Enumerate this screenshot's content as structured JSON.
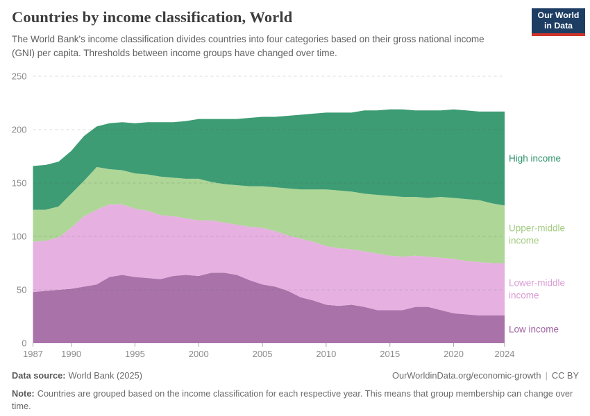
{
  "header": {
    "title": "Countries by income classification, World",
    "subtitle": "The World Bank's income classification divides countries into four categories based on their gross national income (GNI) per capita. Thresholds between income groups have changed over time."
  },
  "logo": {
    "line1": "Our World",
    "line2": "in Data",
    "bg_color": "#1d3d63",
    "stripe_color": "#cf342b"
  },
  "footer": {
    "data_source_label": "Data source:",
    "data_source_value": "World Bank (2025)",
    "link": "OurWorldinData.org/economic-growth",
    "divider": "|",
    "license": "CC BY",
    "note_label": "Note:",
    "note_text": "Countries are grouped based on the income classification for each respective year. This means that group membership can change over time."
  },
  "chart_data": {
    "type": "area",
    "stacked": true,
    "title": "Countries by income classification, World",
    "xlabel": "",
    "ylabel": "",
    "ylim": [
      0,
      250
    ],
    "yticks": [
      0,
      50,
      100,
      150,
      200,
      250
    ],
    "xticks": [
      1987,
      1990,
      1995,
      2000,
      2005,
      2010,
      2015,
      2020,
      2024
    ],
    "grid": "horizontal-dashed",
    "legend_position": "right",
    "x": [
      1987,
      1988,
      1989,
      1990,
      1991,
      1992,
      1993,
      1994,
      1995,
      1996,
      1997,
      1998,
      1999,
      2000,
      2001,
      2002,
      2003,
      2004,
      2005,
      2006,
      2007,
      2008,
      2009,
      2010,
      2011,
      2012,
      2013,
      2014,
      2015,
      2016,
      2017,
      2018,
      2019,
      2020,
      2021,
      2022,
      2023,
      2024
    ],
    "series": [
      {
        "id": "low-income",
        "name": "Low income",
        "legend_lines": [
          "Low income"
        ],
        "color": "#a973aa",
        "label_color": "#a163a3",
        "values": [
          48,
          49,
          50,
          51,
          53,
          55,
          62,
          64,
          62,
          61,
          60,
          63,
          64,
          63,
          66,
          66,
          64,
          59,
          55,
          53,
          49,
          43,
          40,
          36,
          35,
          36,
          34,
          31,
          31,
          31,
          34,
          34,
          31,
          28,
          27,
          26,
          26,
          26
        ]
      },
      {
        "id": "lower-middle-income",
        "name": "Lower-middle income",
        "legend_lines": [
          "Lower-middle",
          "income"
        ],
        "color": "#e6b1e1",
        "label_color": "#d99bd4",
        "values": [
          47,
          47,
          49,
          57,
          66,
          70,
          68,
          66,
          64,
          63,
          60,
          56,
          53,
          52,
          49,
          47,
          47,
          50,
          53,
          52,
          52,
          55,
          55,
          55,
          54,
          52,
          52,
          53,
          51,
          50,
          48,
          47,
          49,
          51,
          50,
          50,
          49,
          49
        ]
      },
      {
        "id": "upper-middle-income",
        "name": "Upper-middle income",
        "legend_lines": [
          "Upper-middle",
          "income"
        ],
        "color": "#aed696",
        "label_color": "#a2ca7f",
        "values": [
          30,
          29,
          29,
          32,
          33,
          40,
          33,
          32,
          33,
          34,
          36,
          36,
          37,
          39,
          36,
          36,
          37,
          38,
          39,
          41,
          44,
          46,
          49,
          53,
          54,
          54,
          54,
          55,
          56,
          56,
          55,
          55,
          57,
          57,
          58,
          58,
          56,
          54
        ]
      },
      {
        "id": "high-income",
        "name": "High income",
        "legend_lines": [
          "High income"
        ],
        "color": "#3d9c74",
        "label_color": "#2a9268",
        "values": [
          41,
          42,
          42,
          40,
          42,
          38,
          43,
          45,
          47,
          49,
          51,
          52,
          54,
          56,
          59,
          61,
          62,
          64,
          65,
          66,
          68,
          70,
          71,
          72,
          73,
          74,
          78,
          79,
          81,
          82,
          81,
          82,
          81,
          83,
          83,
          83,
          86,
          88
        ]
      }
    ]
  }
}
